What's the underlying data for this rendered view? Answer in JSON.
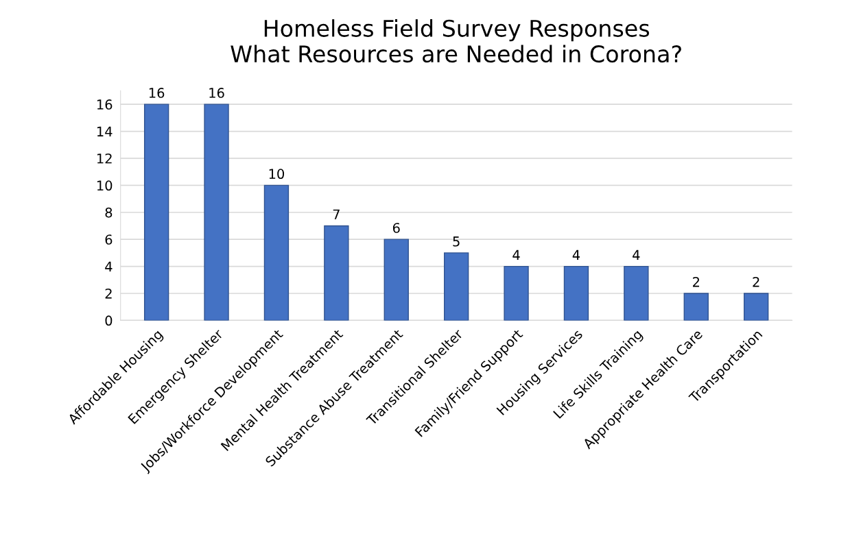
{
  "chart_data": {
    "type": "bar",
    "title": "Homeless Field Survey Responses\nWhat Resources are Needed in Corona?",
    "categories": [
      "Affordable Housing",
      "Emergency Shelter",
      "Jobs/Workforce Development",
      "Mental Health Treatment",
      "Substance Abuse Treatment",
      "Transitional Shelter",
      "Family/Friend Support",
      "Housing Services",
      "Life Skills Training",
      "Appropriate Health Care",
      "Transportation"
    ],
    "values": [
      16,
      16,
      10,
      7,
      6,
      5,
      4,
      4,
      4,
      2,
      2
    ],
    "color": "#4472c4",
    "ylim": [
      0,
      17
    ],
    "yticks": [
      0,
      2,
      4,
      6,
      8,
      10,
      12,
      14,
      16
    ],
    "grid": "y",
    "data_labels": true
  }
}
